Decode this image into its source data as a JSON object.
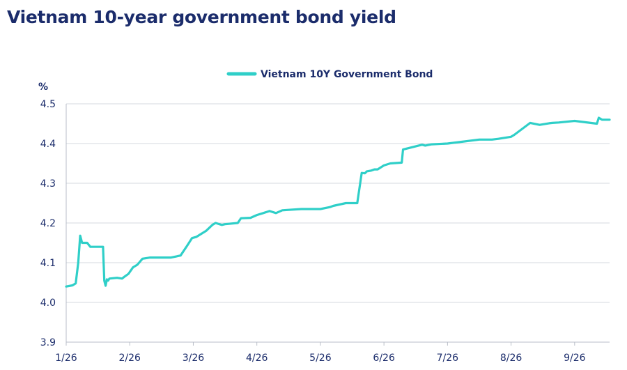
{
  "page": {
    "title": "Vietnam 10-year government bond yield"
  },
  "chart_data": {
    "type": "line",
    "title": "Vietnam 10-year government bond yield",
    "ylabel": "%",
    "xlabel": "",
    "ylim": [
      3.9,
      4.5
    ],
    "yticks": [
      "3.9",
      "4.0",
      "4.1",
      "4.2",
      "4.3",
      "4.4",
      "4.5"
    ],
    "xlim": [
      0,
      8.55
    ],
    "xticks": [
      "1/26",
      "2/26",
      "3/26",
      "4/26",
      "5/26",
      "6/26",
      "7/26",
      "8/26",
      "9/26"
    ],
    "grid": true,
    "legend_position": "top-center",
    "series": [
      {
        "name": "Vietnam 10Y Government Bond",
        "color": "#2fcfc8",
        "x": [
          0,
          0.1,
          0.15,
          0.19,
          0.22,
          0.25,
          0.27,
          0.33,
          0.38,
          0.43,
          0.5,
          0.58,
          0.6,
          0.62,
          0.64,
          0.66,
          0.68,
          0.8,
          0.88,
          0.92,
          0.98,
          1.05,
          1.12,
          1.2,
          1.28,
          1.32,
          1.4,
          1.65,
          1.8,
          1.9,
          1.98,
          2.05,
          2.2,
          2.3,
          2.35,
          2.45,
          2.5,
          2.7,
          2.75,
          2.9,
          3.0,
          3.1,
          3.2,
          3.3,
          3.4,
          3.5,
          3.7,
          4.0,
          4.15,
          4.2,
          4.4,
          4.58,
          4.65,
          4.7,
          4.73,
          4.8,
          4.85,
          4.9,
          5.0,
          5.1,
          5.28,
          5.3,
          5.6,
          5.65,
          5.75,
          6.0,
          6.5,
          6.7,
          6.8,
          7.0,
          7.05,
          7.3,
          7.45,
          7.6,
          7.65,
          7.75,
          8.0,
          8.35,
          8.38,
          8.43,
          8.55
        ],
        "y": [
          4.04,
          4.043,
          4.048,
          4.1,
          4.168,
          4.15,
          4.15,
          4.15,
          4.14,
          4.14,
          4.14,
          4.14,
          4.055,
          4.042,
          4.058,
          4.055,
          4.06,
          4.062,
          4.06,
          4.065,
          4.072,
          4.088,
          4.095,
          4.11,
          4.112,
          4.113,
          4.113,
          4.113,
          4.118,
          4.142,
          4.162,
          4.165,
          4.18,
          4.195,
          4.2,
          4.195,
          4.197,
          4.2,
          4.212,
          4.213,
          4.22,
          4.225,
          4.23,
          4.225,
          4.232,
          4.233,
          4.235,
          4.235,
          4.24,
          4.243,
          4.25,
          4.25,
          4.326,
          4.325,
          4.33,
          4.332,
          4.335,
          4.335,
          4.345,
          4.35,
          4.352,
          4.385,
          4.397,
          4.395,
          4.398,
          4.4,
          4.41,
          4.41,
          4.412,
          4.417,
          4.422,
          4.452,
          4.447,
          4.451,
          4.452,
          4.453,
          4.457,
          4.45,
          4.465,
          4.46,
          4.46
        ]
      }
    ]
  }
}
